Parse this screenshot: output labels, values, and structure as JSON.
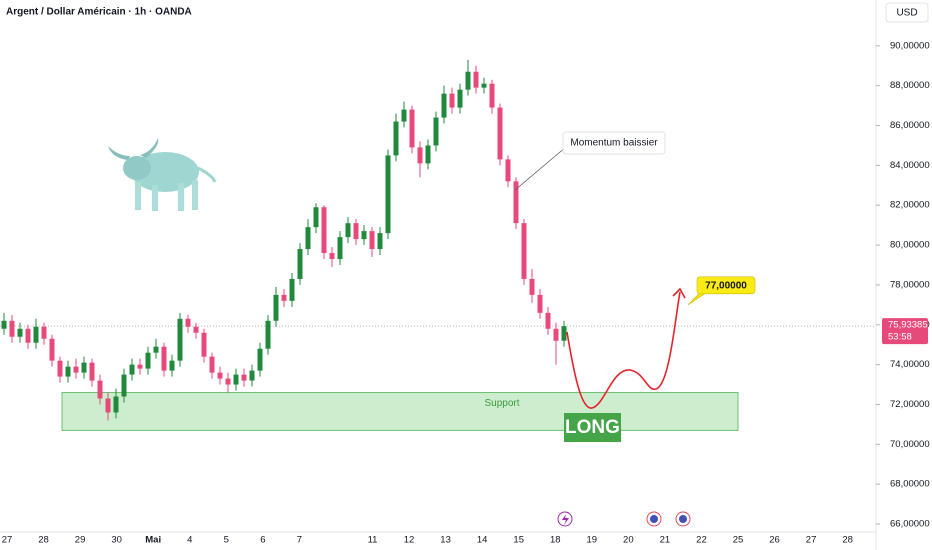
{
  "header": {
    "title": "Argent / Dollar Américain · 1h · OANDA",
    "currency": "USD"
  },
  "chart_data": {
    "type": "candlestick",
    "ylim": [
      65.6,
      92.3
    ],
    "yticks": [
      {
        "value": 66,
        "label": "66,00000"
      },
      {
        "value": 68,
        "label": "68,00000"
      },
      {
        "value": 70,
        "label": "70,00000"
      },
      {
        "value": 72,
        "label": "72,00000"
      },
      {
        "value": 74,
        "label": "74,00000"
      },
      {
        "value": 76,
        "label": "76,00000"
      },
      {
        "value": 78,
        "label": "78,00000"
      },
      {
        "value": 80,
        "label": "80,00000"
      },
      {
        "value": 82,
        "label": "82,00000"
      },
      {
        "value": 84,
        "label": "84,00000"
      },
      {
        "value": 86,
        "label": "86,00000"
      },
      {
        "value": 88,
        "label": "88,00000"
      },
      {
        "value": 90,
        "label": "90,00000"
      }
    ],
    "categories": [
      "27",
      "28",
      "29",
      "30",
      "Mai",
      "4",
      "5",
      "6",
      "7",
      null,
      "11",
      "12",
      "13",
      "14",
      "15",
      "18",
      "19",
      "20",
      "21",
      "22",
      "25",
      "26",
      "27",
      "28"
    ],
    "open": [
      75.8,
      76.2,
      75.4,
      75.8,
      75.1,
      75.9,
      75.3,
      74.2,
      73.4,
      73.9,
      73.6,
      74.1,
      73.2,
      72.3,
      71.6,
      72.4,
      73.5,
      74.0,
      73.8,
      74.6,
      74.9,
      73.7,
      74.2,
      76.3,
      75.9,
      75.6,
      74.4,
      73.6,
      73.3,
      73.0,
      73.5,
      73.2,
      73.7,
      74.8,
      76.2,
      77.5,
      77.2,
      78.3,
      79.8,
      80.9,
      81.9,
      79.6,
      79.3,
      80.4,
      81.1,
      80.3,
      80.7,
      79.8,
      80.6,
      84.5,
      86.2,
      86.8,
      84.9,
      84.1,
      85.0,
      86.4,
      87.6,
      86.9,
      87.8,
      88.7,
      87.9,
      88.1,
      86.9,
      84.3,
      83.2,
      81.1,
      78.3,
      77.5,
      76.6,
      75.8,
      75.2
    ],
    "high": [
      76.6,
      76.5,
      76.1,
      76.0,
      76.3,
      76.1,
      75.5,
      74.4,
      74.2,
      74.3,
      74.4,
      74.3,
      73.5,
      72.6,
      72.8,
      73.8,
      74.3,
      74.3,
      74.9,
      75.3,
      75.1,
      74.5,
      76.6,
      76.5,
      76.1,
      75.8,
      74.6,
      73.9,
      73.6,
      73.8,
      73.8,
      74.0,
      75.1,
      76.5,
      77.9,
      77.8,
      78.6,
      80.1,
      81.3,
      82.1,
      82.0,
      79.9,
      80.7,
      81.4,
      81.3,
      81.0,
      80.9,
      80.9,
      84.8,
      86.6,
      87.2,
      87.0,
      85.2,
      85.3,
      86.7,
      88.0,
      87.9,
      88.1,
      89.3,
      89.0,
      88.4,
      88.3,
      87.1,
      84.5,
      83.4,
      81.3,
      78.8,
      77.8,
      76.9,
      76.1,
      76.2
    ],
    "low": [
      75.5,
      75.1,
      75.1,
      74.8,
      74.8,
      75.0,
      73.9,
      73.1,
      73.1,
      73.3,
      73.3,
      72.9,
      72.0,
      71.2,
      71.3,
      72.1,
      73.2,
      73.5,
      73.5,
      74.3,
      73.4,
      73.4,
      73.9,
      75.6,
      75.3,
      74.1,
      73.3,
      73.0,
      72.6,
      72.7,
      72.9,
      72.9,
      73.4,
      74.5,
      75.9,
      76.9,
      76.9,
      78.0,
      79.5,
      80.6,
      79.3,
      78.9,
      79.0,
      80.1,
      80.0,
      80.0,
      79.4,
      79.5,
      80.3,
      84.2,
      85.9,
      84.6,
      83.4,
      83.8,
      84.7,
      86.1,
      86.6,
      86.6,
      87.5,
      87.6,
      87.6,
      86.6,
      84.0,
      82.9,
      80.8,
      78.0,
      77.1,
      76.3,
      75.5,
      74.0,
      74.9
    ],
    "close": [
      76.2,
      75.4,
      75.8,
      75.1,
      75.9,
      75.3,
      74.2,
      73.4,
      73.9,
      73.6,
      74.1,
      73.2,
      72.3,
      71.6,
      72.4,
      73.5,
      74.0,
      73.8,
      74.6,
      74.9,
      73.7,
      74.2,
      76.3,
      75.9,
      75.6,
      74.4,
      73.6,
      73.3,
      73.0,
      73.5,
      73.2,
      73.7,
      74.8,
      76.2,
      77.5,
      77.2,
      78.3,
      79.8,
      80.9,
      81.9,
      79.6,
      79.3,
      80.4,
      81.1,
      80.3,
      80.7,
      79.8,
      80.6,
      84.5,
      86.2,
      86.8,
      84.9,
      84.1,
      85.0,
      86.4,
      87.6,
      86.9,
      87.8,
      88.7,
      87.9,
      88.1,
      86.9,
      84.3,
      83.2,
      81.1,
      78.3,
      77.5,
      76.6,
      75.8,
      75.2,
      75.93
    ],
    "up_color": "#1f8a3c",
    "down_color": "#e8497b",
    "last_price": {
      "value": 75.93385,
      "label": "75,93385",
      "countdown": "53:58"
    },
    "annotation": "Momentum baissier",
    "target": {
      "value": 77,
      "label": "77,00000"
    },
    "support": {
      "label": "Support",
      "top": 72.6,
      "bottom": 70.7
    },
    "signal": "LONG"
  }
}
